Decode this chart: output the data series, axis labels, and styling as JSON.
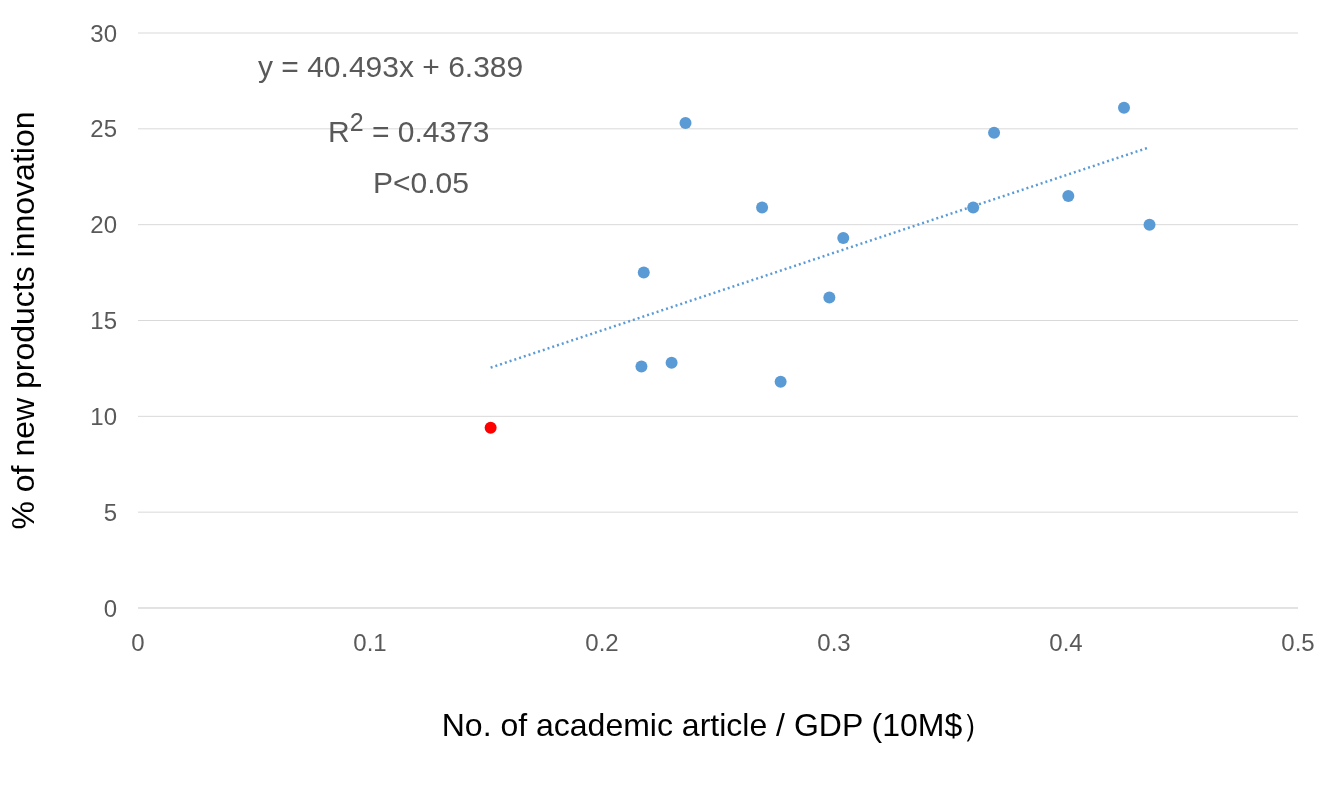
{
  "chart_data": {
    "type": "scatter",
    "xlabel": "No. of academic article / GDP (10M$）",
    "ylabel": "% of new products innovation",
    "annotations": [
      "y = 40.493x + 6.389",
      "R$^{2}$ = 0.4373",
      "P<0.05"
    ],
    "series": [
      {
        "marker": "circle",
        "color": "#5b9bd5",
        "x": [
          0.218,
          0.217,
          0.23,
          0.236,
          0.269,
          0.277,
          0.298,
          0.304,
          0.36,
          0.369,
          0.401,
          0.425,
          0.436
        ],
        "values": [
          17.5,
          12.6,
          12.8,
          25.3,
          20.9,
          11.8,
          16.2,
          19.3,
          20.9,
          24.8,
          21.5,
          26.1,
          20.0
        ]
      },
      {
        "marker": "circle",
        "color": "#ff0000",
        "x": [
          0.152
        ],
        "values": [
          9.4
        ]
      },
      {
        "type": "line",
        "color": "#5b9bd5",
        "line_style": "dotted",
        "x": [
          0.152,
          0.436
        ],
        "values": [
          12.54,
          24.04
        ]
      }
    ],
    "xlim": [
      0,
      0.5
    ],
    "xticks": [
      0,
      0.1,
      0.2,
      0.3,
      0.4,
      0.5
    ],
    "ylim": [
      0,
      30
    ],
    "yticks": [
      0,
      5,
      10,
      15,
      20,
      25,
      30
    ],
    "grid": "y"
  }
}
